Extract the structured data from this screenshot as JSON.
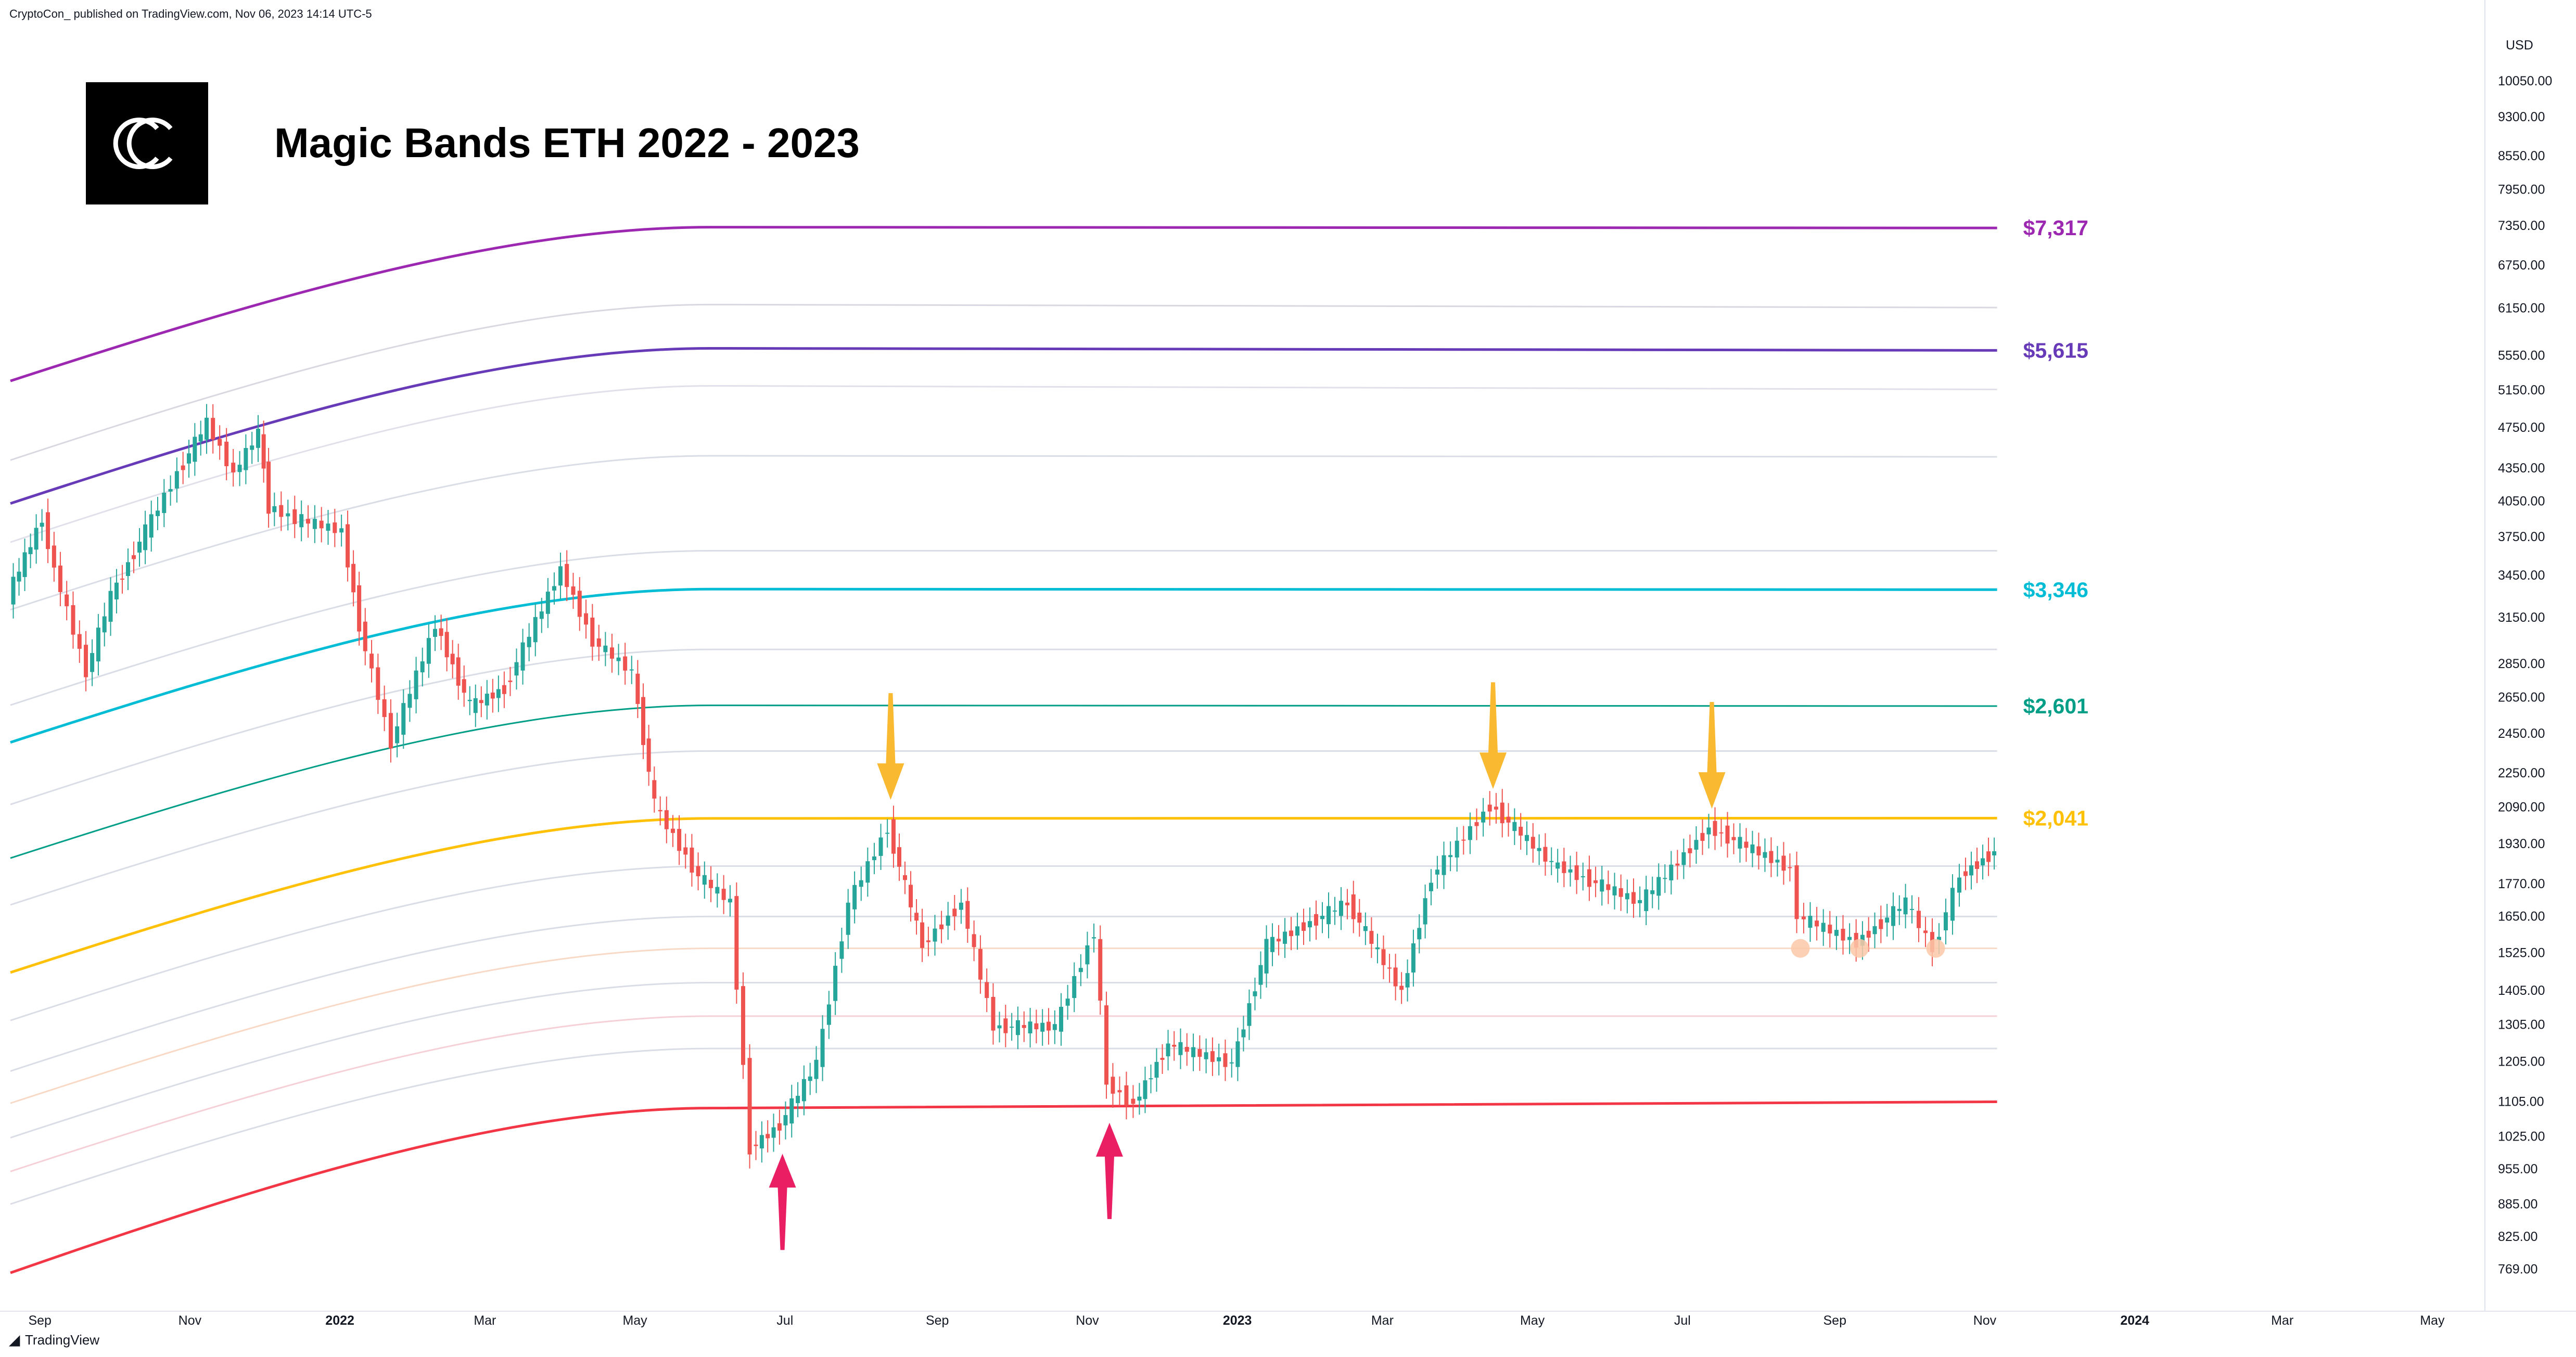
{
  "header": {
    "publisher_line": "CryptoCon_ published on TradingView.com, Nov 06, 2023 14:14 UTC-5",
    "currency": "USD"
  },
  "footer": {
    "brand": "TradingView",
    "brand_icon": "tradingview-logo-icon"
  },
  "logo": {
    "icon": "cryptocon-logo-icon",
    "bg": "#000000",
    "fg": "#ffffff"
  },
  "chart_data": {
    "type": "line",
    "title": "Magic Bands ETH 2022 - 2023",
    "y_scale": "log",
    "ylim": [
      760,
      11200
    ],
    "y_ticks": [
      "769.00",
      "825.00",
      "885.00",
      "955.00",
      "1025.00",
      "1105.00",
      "1205.00",
      "1305.00",
      "1405.00",
      "1525.00",
      "1650.00",
      "1770.00",
      "1930.00",
      "2090.00",
      "2250.00",
      "2450.00",
      "2650.00",
      "2850.00",
      "3150.00",
      "3450.00",
      "3750.00",
      "4050.00",
      "4350.00",
      "4750.00",
      "5150.00",
      "5550.00",
      "6150.00",
      "6750.00",
      "7350.00",
      "7950.00",
      "8550.00",
      "9300.00",
      "10050.00"
    ],
    "x_ticks": [
      {
        "label": "Sep",
        "year": false,
        "date": "2021-09-01"
      },
      {
        "label": "Nov",
        "year": false,
        "date": "2021-11-01"
      },
      {
        "label": "2022",
        "year": true,
        "date": "2022-01-01"
      },
      {
        "label": "Mar",
        "year": false,
        "date": "2022-03-01"
      },
      {
        "label": "May",
        "year": false,
        "date": "2022-05-01"
      },
      {
        "label": "Jul",
        "year": false,
        "date": "2022-07-01"
      },
      {
        "label": "Sep",
        "year": false,
        "date": "2022-09-01"
      },
      {
        "label": "Nov",
        "year": false,
        "date": "2022-11-01"
      },
      {
        "label": "2023",
        "year": true,
        "date": "2023-01-01"
      },
      {
        "label": "Mar",
        "year": false,
        "date": "2023-03-01"
      },
      {
        "label": "May",
        "year": false,
        "date": "2023-05-01"
      },
      {
        "label": "Jul",
        "year": false,
        "date": "2023-07-01"
      },
      {
        "label": "Sep",
        "year": false,
        "date": "2023-09-01"
      },
      {
        "label": "Nov",
        "year": false,
        "date": "2023-11-01"
      },
      {
        "label": "2024",
        "year": true,
        "date": "2024-01-01"
      },
      {
        "label": "Mar",
        "year": false,
        "date": "2024-03-01"
      },
      {
        "label": "May",
        "year": false,
        "date": "2024-05-01"
      }
    ],
    "price_series": {
      "name": "",
      "up_color": "#26a69a",
      "down_color": "#ef5350",
      "points": [
        {
          "x": "2021-08-20",
          "y": 3300
        },
        {
          "x": "2021-09-03",
          "y": 3900
        },
        {
          "x": "2021-09-08",
          "y": 3500
        },
        {
          "x": "2021-09-21",
          "y": 2800
        },
        {
          "x": "2021-10-01",
          "y": 3300
        },
        {
          "x": "2021-10-15",
          "y": 3800
        },
        {
          "x": "2021-10-28",
          "y": 4300
        },
        {
          "x": "2021-11-09",
          "y": 4800
        },
        {
          "x": "2021-11-20",
          "y": 4300
        },
        {
          "x": "2021-11-30",
          "y": 4700
        },
        {
          "x": "2021-12-04",
          "y": 4000
        },
        {
          "x": "2021-12-15",
          "y": 3900
        },
        {
          "x": "2022-01-03",
          "y": 3800
        },
        {
          "x": "2022-01-10",
          "y": 3100
        },
        {
          "x": "2022-01-23",
          "y": 2400
        },
        {
          "x": "2022-02-10",
          "y": 3100
        },
        {
          "x": "2022-02-24",
          "y": 2600
        },
        {
          "x": "2022-03-10",
          "y": 2700
        },
        {
          "x": "2022-04-02",
          "y": 3500
        },
        {
          "x": "2022-04-15",
          "y": 3000
        },
        {
          "x": "2022-05-01",
          "y": 2800
        },
        {
          "x": "2022-05-10",
          "y": 2100
        },
        {
          "x": "2022-05-28",
          "y": 1800
        },
        {
          "x": "2022-06-10",
          "y": 1700
        },
        {
          "x": "2022-06-18",
          "y": 1000
        },
        {
          "x": "2022-06-30",
          "y": 1050
        },
        {
          "x": "2022-07-15",
          "y": 1200
        },
        {
          "x": "2022-07-28",
          "y": 1700
        },
        {
          "x": "2022-08-13",
          "y": 2000
        },
        {
          "x": "2022-08-27",
          "y": 1550
        },
        {
          "x": "2022-09-12",
          "y": 1700
        },
        {
          "x": "2022-09-25",
          "y": 1300
        },
        {
          "x": "2022-10-20",
          "y": 1300
        },
        {
          "x": "2022-11-05",
          "y": 1600
        },
        {
          "x": "2022-11-10",
          "y": 1150
        },
        {
          "x": "2022-11-21",
          "y": 1100
        },
        {
          "x": "2022-12-05",
          "y": 1250
        },
        {
          "x": "2022-12-31",
          "y": 1200
        },
        {
          "x": "2023-01-14",
          "y": 1550
        },
        {
          "x": "2023-02-16",
          "y": 1700
        },
        {
          "x": "2023-03-10",
          "y": 1400
        },
        {
          "x": "2023-03-22",
          "y": 1800
        },
        {
          "x": "2023-04-15",
          "y": 2100
        },
        {
          "x": "2023-05-10",
          "y": 1850
        },
        {
          "x": "2023-06-15",
          "y": 1700
        },
        {
          "x": "2023-07-13",
          "y": 2000
        },
        {
          "x": "2023-08-15",
          "y": 1830
        },
        {
          "x": "2023-08-18",
          "y": 1650
        },
        {
          "x": "2023-09-11",
          "y": 1560
        },
        {
          "x": "2023-10-01",
          "y": 1700
        },
        {
          "x": "2023-10-12",
          "y": 1540
        },
        {
          "x": "2023-10-23",
          "y": 1800
        },
        {
          "x": "2023-11-06",
          "y": 1900
        }
      ]
    },
    "bands": [
      {
        "color": "#d8d8e0",
        "bold": false,
        "labeled": false,
        "points": [
          [
            0,
            6150
          ],
          [
            1,
            6200
          ],
          [
            2,
            6160
          ]
        ]
      },
      {
        "color": "#e0e0ea",
        "bold": false,
        "labeled": false,
        "points": [
          [
            0,
            5150
          ],
          [
            1,
            5200
          ],
          [
            2,
            5160
          ]
        ]
      },
      {
        "color": "#dadde6",
        "bold": false,
        "labeled": false,
        "points": [
          [
            0,
            4450
          ],
          [
            1,
            4470
          ],
          [
            2,
            4460
          ]
        ]
      },
      {
        "color": "#dadde6",
        "bold": false,
        "labeled": false,
        "points": [
          [
            0,
            3620
          ],
          [
            1,
            3640
          ],
          [
            2,
            3640
          ]
        ]
      },
      {
        "color": "#dadde6",
        "bold": false,
        "labeled": false,
        "points": [
          [
            0,
            2920
          ],
          [
            1,
            2940
          ],
          [
            2,
            2940
          ]
        ]
      },
      {
        "color": "#cfe8e4",
        "bold": false,
        "labeled": false,
        "points": [
          [
            0,
            2600
          ],
          [
            1,
            2605
          ],
          [
            2,
            2601
          ]
        ]
      },
      {
        "color": "#dadde6",
        "bold": false,
        "labeled": false,
        "points": [
          [
            0,
            2350
          ],
          [
            1,
            2360
          ],
          [
            2,
            2360
          ]
        ]
      },
      {
        "color": "#dadde6",
        "bold": false,
        "labeled": false,
        "points": [
          [
            0,
            1830
          ],
          [
            1,
            1840
          ],
          [
            2,
            1840
          ]
        ]
      },
      {
        "color": "#dadde6",
        "bold": false,
        "labeled": false,
        "points": [
          [
            0,
            1640
          ],
          [
            1,
            1650
          ],
          [
            2,
            1650
          ]
        ]
      },
      {
        "color": "#f8d9c6",
        "bold": false,
        "labeled": false,
        "points": [
          [
            0,
            1530
          ],
          [
            1,
            1540
          ],
          [
            2,
            1540
          ]
        ]
      },
      {
        "color": "#dadde6",
        "bold": false,
        "labeled": false,
        "points": [
          [
            0,
            1420
          ],
          [
            1,
            1430
          ],
          [
            2,
            1430
          ]
        ]
      },
      {
        "color": "#f5d0d6",
        "bold": false,
        "labeled": false,
        "points": [
          [
            0,
            1320
          ],
          [
            1,
            1330
          ],
          [
            2,
            1330
          ]
        ]
      },
      {
        "color": "#dadde6",
        "bold": false,
        "labeled": false,
        "points": [
          [
            0,
            1230
          ],
          [
            1,
            1240
          ],
          [
            2,
            1240
          ]
        ]
      },
      {
        "color": "#9c27b0",
        "bold": true,
        "labeled": true,
        "label": "$7,317",
        "points": [
          [
            0,
            7300
          ],
          [
            1,
            7330
          ],
          [
            2,
            7317
          ]
        ]
      },
      {
        "color": "#673ab7",
        "bold": true,
        "labeled": true,
        "label": "$5,615",
        "points": [
          [
            0,
            5600
          ],
          [
            1,
            5640
          ],
          [
            2,
            5615
          ]
        ]
      },
      {
        "color": "#00bcd4",
        "bold": true,
        "labeled": true,
        "label": "$3,346",
        "points": [
          [
            0,
            3340
          ],
          [
            1,
            3350
          ],
          [
            2,
            3346
          ]
        ]
      },
      {
        "color": "#009e86",
        "bold": false,
        "labeled": true,
        "label": "$2,601",
        "points": [
          [
            0,
            2600
          ],
          [
            1,
            2605
          ],
          [
            2,
            2601
          ]
        ]
      },
      {
        "color": "#ffc107",
        "bold": true,
        "labeled": true,
        "label": "$2,041",
        "points": [
          [
            0,
            2030
          ],
          [
            1,
            2040
          ],
          [
            2,
            2041
          ]
        ]
      },
      {
        "color": "#f23645",
        "bold": true,
        "labeled": false,
        "points": [
          [
            0,
            1060
          ],
          [
            1,
            1090
          ],
          [
            2,
            1105
          ]
        ]
      }
    ],
    "annotations": [
      {
        "kind": "arrow-down",
        "color": "#f9b931",
        "x": "2022-08-13",
        "y": 2100
      },
      {
        "kind": "arrow-down",
        "color": "#f9b931",
        "x": "2023-04-15",
        "y": 2150
      },
      {
        "kind": "arrow-down",
        "color": "#f9b931",
        "x": "2023-07-13",
        "y": 2060
      },
      {
        "kind": "arrow-up",
        "color": "#e91e63",
        "x": "2022-06-30",
        "y": 1010
      },
      {
        "kind": "arrow-up",
        "color": "#e91e63",
        "x": "2022-11-10",
        "y": 1080
      },
      {
        "kind": "dot",
        "color": "#fbc8a8",
        "x": "2023-08-18",
        "y": 1540
      },
      {
        "kind": "dot",
        "color": "#fbc8a8",
        "x": "2023-09-11",
        "y": 1540
      },
      {
        "kind": "dot",
        "color": "#fbc8a8",
        "x": "2023-10-12",
        "y": 1540
      }
    ]
  }
}
